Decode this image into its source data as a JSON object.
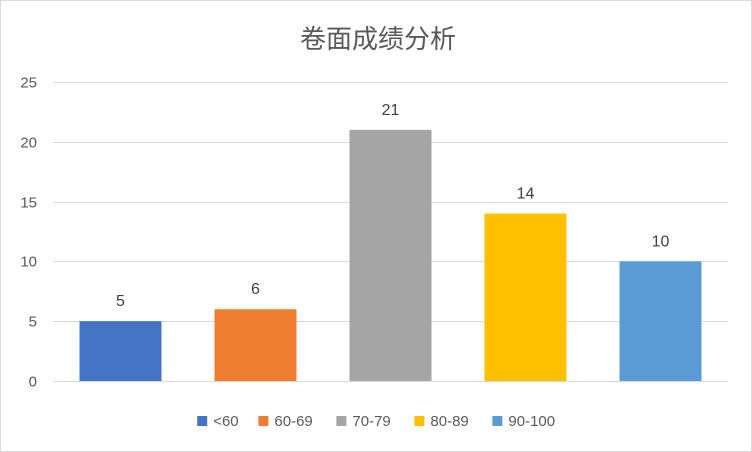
{
  "chart_data": {
    "type": "bar",
    "title": "卷面成绩分析",
    "categories": [
      "<60",
      "60-69",
      "70-79",
      "80-89",
      "90-100"
    ],
    "values": [
      5,
      6,
      21,
      14,
      10
    ],
    "colors": [
      "#4472c4",
      "#ed7d31",
      "#a5a5a5",
      "#ffc000",
      "#5b9bd5"
    ],
    "ylim": [
      0,
      25
    ],
    "yticks": [
      0,
      5,
      10,
      15,
      20,
      25
    ],
    "xlabel": "",
    "ylabel": "",
    "grid": true,
    "legend_position": "bottom",
    "data_labels": true
  }
}
